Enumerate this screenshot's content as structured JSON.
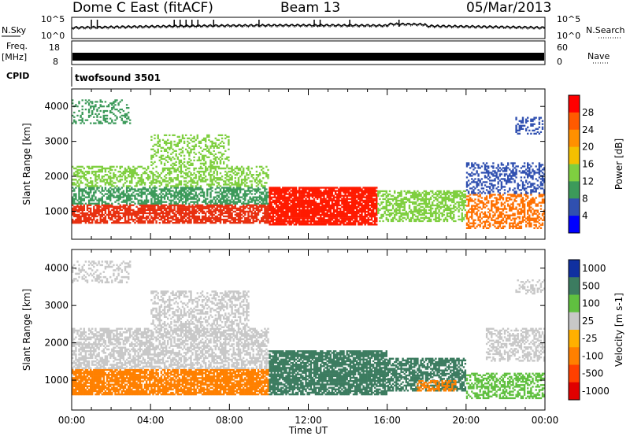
{
  "header": {
    "title": "Dome C East (fitACF)",
    "beam": "Beam 13",
    "date": "05/Mar/2013"
  },
  "top_panels": {
    "nsky_label": "N.Sky",
    "nsky_ticks": [
      "10^5",
      "10^0"
    ],
    "nsearch_label": "N.Search",
    "nsearch_ticks": [
      "10^5",
      "10^0"
    ],
    "freq_label": "Freq.",
    "freq_unit": "[MHz]",
    "freq_ticks": [
      "18",
      "8"
    ],
    "nave_label": "Nave",
    "nave_ticks": [
      "60",
      "0"
    ],
    "cpid_label": "CPID",
    "cpid_value": "twofsound 3501"
  },
  "chart_data": [
    {
      "type": "heatmap",
      "name": "power",
      "ylabel": "Slant Range [km]",
      "y_ticks": [
        "4000",
        "3000",
        "2000",
        "1000"
      ],
      "ylim": [
        200,
        4500
      ],
      "colorbar_label": "Power [dB]",
      "colorbar_ticks": [
        "28",
        "24",
        "20",
        "16",
        "12",
        "8",
        "4"
      ],
      "colorbar_colors": [
        "#ff0000",
        "#ff5a00",
        "#ff9000",
        "#f4c000",
        "#7fcf40",
        "#3c9a5a",
        "#3050b0",
        "#0000ff"
      ],
      "bands": [
        {
          "t0": 0.0,
          "t1": 10.0,
          "r0": 650,
          "r1": 1200,
          "color": "#e83010",
          "density": 0.75
        },
        {
          "t0": 0.0,
          "t1": 10.0,
          "r0": 1200,
          "r1": 1700,
          "color": "#3c9a5a",
          "density": 0.6
        },
        {
          "t0": 0.0,
          "t1": 10.0,
          "r0": 1700,
          "r1": 2300,
          "color": "#7fcf40",
          "density": 0.45
        },
        {
          "t0": 4.0,
          "t1": 8.0,
          "r0": 2300,
          "r1": 3200,
          "color": "#7fcf40",
          "density": 0.35
        },
        {
          "t0": 0.0,
          "t1": 3.0,
          "r0": 3500,
          "r1": 4200,
          "color": "#3c9a5a",
          "density": 0.3
        },
        {
          "t0": 10.0,
          "t1": 15.5,
          "r0": 600,
          "r1": 1700,
          "color": "#ff1a00",
          "density": 0.85
        },
        {
          "t0": 15.5,
          "t1": 20.0,
          "r0": 700,
          "r1": 1600,
          "color": "#7fcf40",
          "density": 0.55
        },
        {
          "t0": 20.0,
          "t1": 24.0,
          "r0": 500,
          "r1": 1500,
          "color": "#ff7000",
          "density": 0.5
        },
        {
          "t0": 20.0,
          "t1": 24.0,
          "r0": 1500,
          "r1": 2400,
          "color": "#3050b0",
          "density": 0.4
        },
        {
          "t0": 22.5,
          "t1": 24.0,
          "r0": 3200,
          "r1": 3700,
          "color": "#3050b0",
          "density": 0.35
        }
      ]
    },
    {
      "type": "heatmap",
      "name": "velocity",
      "ylabel": "Slant Range [km]",
      "y_ticks": [
        "4000",
        "3000",
        "2000",
        "1000"
      ],
      "ylim": [
        200,
        4500
      ],
      "colorbar_label": "Velocity [m s-1]",
      "colorbar_ticks": [
        "1000",
        "500",
        "100",
        "25",
        "-25",
        "-100",
        "-500",
        "-1000"
      ],
      "colorbar_colors": [
        "#1030a0",
        "#3c7c60",
        "#60c040",
        "#c8c8c8",
        "#ffb000",
        "#ff8000",
        "#ff4000",
        "#e00000"
      ],
      "x_ticks": [
        "00:00",
        "04:00",
        "08:00",
        "12:00",
        "16:00",
        "20:00",
        "00:00"
      ],
      "xlabel": "Time UT",
      "bands": [
        {
          "t0": 0.0,
          "t1": 10.0,
          "r0": 600,
          "r1": 1300,
          "color": "#ff8000",
          "density": 0.8
        },
        {
          "t0": 0.0,
          "t1": 10.0,
          "r0": 1300,
          "r1": 2400,
          "color": "#c8c8c8",
          "density": 0.6
        },
        {
          "t0": 4.0,
          "t1": 9.0,
          "r0": 2400,
          "r1": 3400,
          "color": "#c8c8c8",
          "density": 0.45
        },
        {
          "t0": 0.0,
          "t1": 3.0,
          "r0": 3600,
          "r1": 4200,
          "color": "#c8c8c8",
          "density": 0.35
        },
        {
          "t0": 10.0,
          "t1": 16.0,
          "r0": 600,
          "r1": 1800,
          "color": "#3c7c60",
          "density": 0.8
        },
        {
          "t0": 16.0,
          "t1": 20.0,
          "r0": 700,
          "r1": 1600,
          "color": "#3c7c60",
          "density": 0.65
        },
        {
          "t0": 17.5,
          "t1": 19.5,
          "r0": 700,
          "r1": 1000,
          "color": "#ff8000",
          "density": 0.5
        },
        {
          "t0": 20.0,
          "t1": 24.0,
          "r0": 500,
          "r1": 1200,
          "color": "#60c040",
          "density": 0.5
        },
        {
          "t0": 21.0,
          "t1": 24.0,
          "r0": 1500,
          "r1": 2400,
          "color": "#c8c8c8",
          "density": 0.5
        },
        {
          "t0": 22.5,
          "t1": 24.0,
          "r0": 3300,
          "r1": 3700,
          "color": "#c8c8c8",
          "density": 0.35
        }
      ]
    }
  ]
}
